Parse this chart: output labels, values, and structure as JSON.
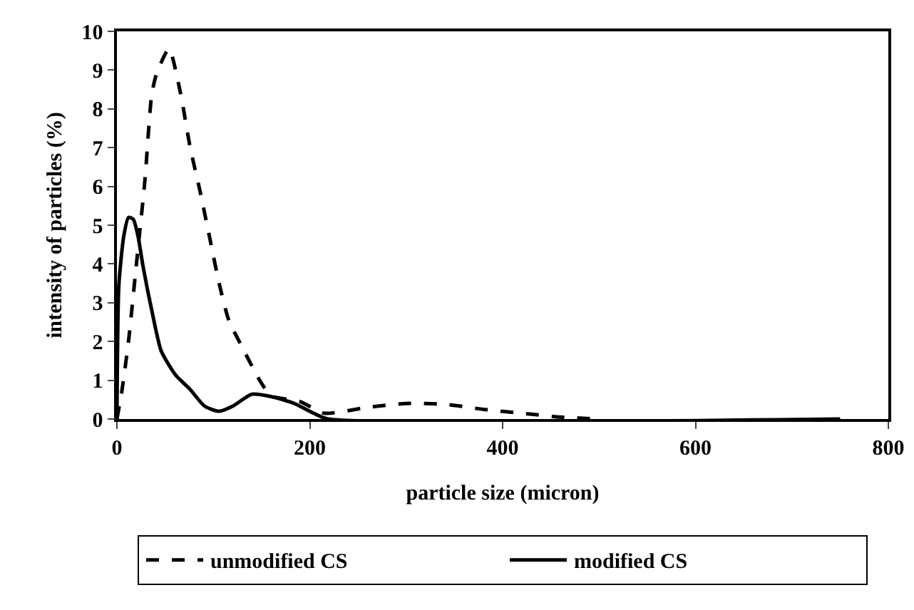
{
  "chart_data": {
    "type": "line",
    "xlabel": "particle size (micron)",
    "ylabel": "intensity of particles (%)",
    "xlim": [
      0,
      800
    ],
    "xticks": [
      0,
      200,
      400,
      600,
      800
    ],
    "ylim": [
      0,
      10
    ],
    "yticks": [
      0,
      1,
      2,
      3,
      4,
      5,
      6,
      7,
      8,
      9,
      10
    ],
    "grid": false,
    "legend": "bottom",
    "marker": "none",
    "series": [
      {
        "name": "unmodified CS",
        "color": "#000000",
        "line_style": "dashed",
        "x": [
          0,
          5,
          12,
          19,
          29,
          36,
          41,
          54,
          66,
          76,
          86,
          96,
          106,
          116,
          131,
          148,
          160,
          190,
          215,
          260,
          300,
          340,
          380,
          420,
          460,
          500
        ],
        "values": [
          0,
          0.7,
          2.0,
          3.7,
          6.15,
          8.35,
          8.9,
          9.55,
          8.4,
          7.0,
          5.9,
          4.7,
          3.5,
          2.55,
          1.8,
          1.0,
          0.6,
          0.45,
          0.15,
          0.3,
          0.4,
          0.38,
          0.25,
          0.15,
          0.05,
          0
        ]
      },
      {
        "name": "modified CS",
        "color": "#000000",
        "line_style": "solid",
        "x": [
          0,
          2,
          7,
          12,
          17,
          22,
          27,
          37,
          46,
          61,
          76,
          91,
          106,
          120,
          140,
          160,
          184,
          204,
          219,
          750
        ],
        "values": [
          0,
          3.45,
          4.7,
          5.2,
          5.15,
          4.7,
          3.95,
          2.7,
          1.75,
          1.13,
          0.76,
          0.33,
          0.2,
          0.33,
          0.64,
          0.58,
          0.4,
          0.15,
          0,
          0
        ]
      }
    ]
  }
}
